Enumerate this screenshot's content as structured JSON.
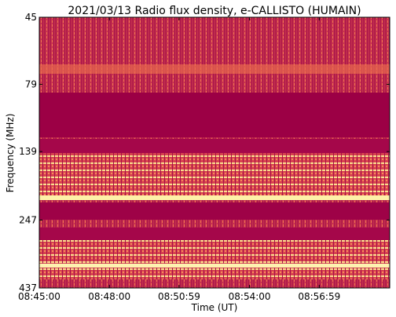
{
  "chart_data": {
    "type": "spectrogram",
    "title": "2021/03/13  Radio flux density, e-CALLISTO (HUMAIN)",
    "xlabel": "Time (UT)",
    "ylabel": "Frequency (MHz)",
    "xlim": [
      31500,
      32400
    ],
    "xticks": [
      {
        "value": 31500,
        "label": "08:45:00"
      },
      {
        "value": 31680,
        "label": "08:48:00"
      },
      {
        "value": 31859,
        "label": "08:50:59"
      },
      {
        "value": 32040,
        "label": "08:54:00"
      },
      {
        "value": 32219,
        "label": "08:56:59"
      }
    ],
    "ylim": [
      45,
      437
    ],
    "ylog": true,
    "yinverted": true,
    "yticks": [
      45,
      79,
      139,
      247,
      437
    ]
  }
}
